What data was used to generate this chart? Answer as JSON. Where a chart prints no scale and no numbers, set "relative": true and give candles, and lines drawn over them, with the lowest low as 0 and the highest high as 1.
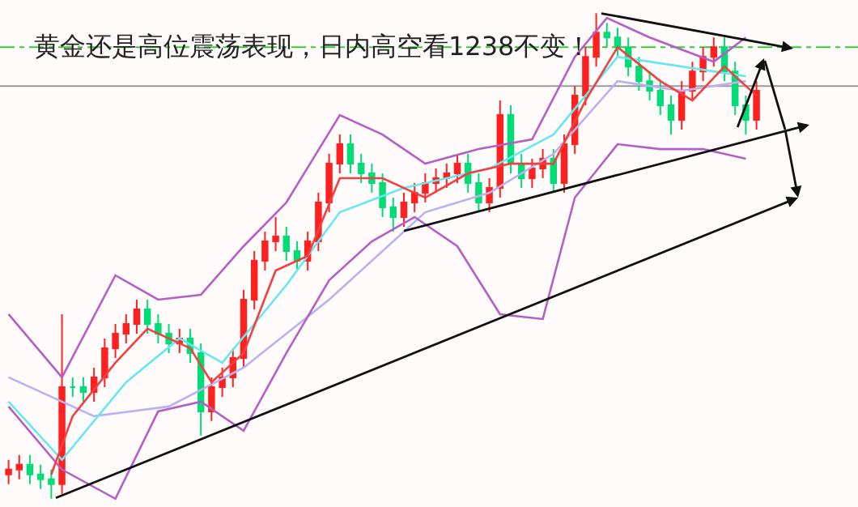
{
  "chart_data": {
    "type": "candlestick",
    "relative": true,
    "title": "黄金还是高位震荡表现，日内高空看1238不变！",
    "categories": [
      null,
      null,
      null,
      null,
      null,
      null,
      null,
      null,
      null,
      null,
      null,
      null,
      null,
      null,
      null,
      null,
      null,
      null,
      null,
      null,
      null,
      null,
      null,
      null,
      null,
      null,
      null,
      null,
      null,
      null,
      null,
      null,
      null,
      null,
      null,
      null,
      null,
      null,
      null,
      null,
      null,
      null,
      null,
      null,
      null,
      null,
      null,
      null,
      null,
      null,
      null,
      null,
      null,
      null,
      null,
      null,
      null,
      null,
      null,
      null,
      null,
      null,
      null,
      null,
      null,
      null,
      null,
      null,
      null,
      null,
      null,
      null,
      null,
      null,
      null,
      null,
      null,
      null,
      null,
      null
    ],
    "ref_lines": [
      {
        "axis": "y",
        "value": 0.93,
        "color": "#33cc33",
        "line_style": "dashed"
      },
      {
        "axis": "y",
        "value": 0.85,
        "color": "#999999",
        "line_style": "solid"
      }
    ],
    "series": [
      {
        "type": "line",
        "color": "#b9b2f0",
        "values": [
          0.25,
          null,
          null,
          null,
          null,
          null,
          null,
          null,
          0.17,
          null,
          null,
          null,
          null,
          null,
          null,
          0.19,
          null,
          null,
          null,
          null,
          null,
          null,
          0.27,
          null,
          null,
          null,
          null,
          null,
          null,
          null,
          0.41,
          null,
          null,
          null,
          null,
          null,
          null,
          null,
          null,
          0.59,
          null,
          null,
          null,
          null,
          null,
          0.63,
          null,
          null,
          null,
          null,
          null,
          0.71,
          null,
          null,
          null,
          null,
          null,
          0.86,
          null,
          null,
          null,
          null,
          null,
          0.84,
          null,
          null,
          null,
          null,
          null,
          0.86,
          null,
          null,
          null,
          null,
          null,
          null,
          null,
          null,
          null,
          null
        ]
      },
      {
        "type": "line",
        "color": "#66e8f0",
        "values": [
          0.2,
          null,
          null,
          null,
          null,
          0.08,
          null,
          null,
          null,
          null,
          null,
          0.24,
          null,
          null,
          null,
          null,
          0.33,
          null,
          null,
          null,
          0.28,
          null,
          null,
          null,
          null,
          null,
          0.44,
          null,
          null,
          null,
          null,
          0.59,
          null,
          null,
          null,
          null,
          null,
          0.64,
          null,
          null,
          null,
          null,
          null,
          null,
          null,
          0.68,
          null,
          null,
          null,
          null,
          null,
          0.75,
          null,
          null,
          null,
          null,
          null,
          0.91,
          null,
          null,
          null,
          null,
          null,
          0.89,
          null,
          null,
          null,
          null,
          null,
          0.87,
          null,
          null,
          null,
          null,
          null,
          null,
          null,
          null,
          null,
          null
        ]
      },
      {
        "type": "line",
        "color": "#b35fc4",
        "values": [
          0.38,
          null,
          null,
          null,
          null,
          0.25,
          null,
          null,
          null,
          null,
          0.46,
          null,
          null,
          null,
          0.41,
          null,
          null,
          null,
          0.42,
          null,
          null,
          null,
          0.52,
          null,
          null,
          null,
          0.61,
          null,
          null,
          null,
          null,
          0.79,
          null,
          null,
          null,
          0.75,
          null,
          null,
          null,
          0.69,
          null,
          null,
          null,
          null,
          0.72,
          null,
          null,
          null,
          null,
          0.74,
          null,
          null,
          null,
          0.91,
          null,
          null,
          0.99,
          null,
          null,
          null,
          0.95,
          null,
          null,
          null,
          null,
          null,
          0.9,
          null,
          null,
          0.95,
          null,
          null,
          null,
          null,
          null,
          null,
          null,
          null,
          null,
          null
        ]
      },
      {
        "type": "line",
        "color": "#b35fc4",
        "values": [
          0.19,
          null,
          null,
          null,
          null,
          0.06,
          null,
          null,
          null,
          null,
          0,
          null,
          null,
          null,
          0.18,
          null,
          null,
          null,
          0.2,
          null,
          null,
          null,
          0.14,
          null,
          null,
          null,
          0.3,
          null,
          null,
          null,
          0.45,
          null,
          null,
          null,
          0.53,
          null,
          null,
          null,
          0.58,
          null,
          null,
          null,
          0.52,
          null,
          null,
          null,
          0.38,
          null,
          null,
          null,
          0.37,
          null,
          null,
          0.62,
          null,
          null,
          null,
          0.73,
          null,
          null,
          null,
          0.72,
          null,
          null,
          null,
          0.72,
          null,
          null,
          null,
          0.7,
          null,
          null,
          null,
          null,
          null,
          null,
          null,
          null,
          null,
          null
        ]
      },
      {
        "type": "line",
        "color": "#f04040",
        "values": [
          null,
          null,
          null,
          null,
          0.05,
          null,
          0.17,
          null,
          null,
          null,
          0.28,
          null,
          null,
          0.35,
          null,
          null,
          null,
          0.31,
          null,
          0.24,
          null,
          null,
          0.3,
          null,
          null,
          0.47,
          null,
          null,
          0.5,
          null,
          null,
          0.66,
          null,
          null,
          null,
          0.66,
          null,
          null,
          null,
          0.62,
          null,
          null,
          null,
          0.67,
          null,
          null,
          null,
          0.69,
          null,
          null,
          null,
          0.69,
          null,
          null,
          0.82,
          null,
          null,
          0.93,
          null,
          null,
          null,
          0.86,
          null,
          null,
          0.82,
          null,
          null,
          0.89,
          null,
          null,
          0.83,
          null,
          null,
          null,
          null,
          null,
          null,
          null,
          null,
          null
        ]
      },
      {
        "colors": [
          "#ff2020",
          "#ff2020",
          "#00dd77",
          "#00dd77",
          "#00dd77",
          "#ff2020",
          "#00dd77",
          "#00dd77",
          "#ff2020",
          "#ff2020",
          "#ff2020",
          "#ff2020",
          "#ff2020",
          "#00dd77",
          "#00dd77",
          "#00dd77",
          "#ff2020",
          "#00dd77",
          "#00dd77",
          "#ff2020",
          "#ff2020",
          "#ff2020",
          "#ff2020",
          "#ff2020",
          "#ff2020",
          "#ff2020",
          "#00dd77",
          "#00dd77",
          "#ff2020",
          "#ff2020",
          "#ff2020",
          "#ff2020",
          "#00dd77",
          "#00dd77",
          "#00dd77",
          "#00dd77",
          "#00dd77",
          "#ff2020",
          "#ff2020",
          "#ff2020",
          "#ff2020",
          "#ff2020",
          "#ff2020",
          "#00dd77",
          "#00dd77",
          "#ff2020",
          "#ff2020",
          "#00dd77",
          "#00dd77",
          "#ff2020",
          "#ff2020",
          "#00dd77",
          "#ff2020",
          "#ff2020",
          "#ff2020",
          "#ff2020",
          "#00dd77",
          "#00dd77",
          "#00dd77",
          "#00dd77",
          "#00dd77",
          "#00dd77",
          "#00dd77",
          "#ff2020",
          "#ff2020",
          "#ff2020",
          "#ff2020",
          "#00dd77",
          "#00dd77",
          "#00dd77",
          "#ff2020",
          null,
          null,
          null,
          null,
          null,
          null,
          null,
          null,
          null
        ],
        "ohlc": [
          [
            0.05,
            0.08,
            0.03,
            0.06
          ],
          [
            0.06,
            0.09,
            0.04,
            0.07
          ],
          [
            0.07,
            0.09,
            0.03,
            0.05
          ],
          [
            0.05,
            0.07,
            0.02,
            0.04
          ],
          [
            0.04,
            0.06,
            0,
            0.03
          ],
          [
            0.03,
            0.38,
            0.01,
            0.23
          ],
          [
            0.23,
            0.25,
            0.21,
            0.23
          ],
          [
            0.23,
            0.25,
            0.2,
            0.22
          ],
          [
            0.22,
            0.27,
            0.2,
            0.25
          ],
          [
            0.25,
            0.33,
            0.23,
            0.31
          ],
          [
            0.31,
            0.36,
            0.29,
            0.34
          ],
          [
            0.34,
            0.38,
            0.32,
            0.36
          ],
          [
            0.36,
            0.41,
            0.34,
            0.39
          ],
          [
            0.39,
            0.41,
            0.34,
            0.36
          ],
          [
            0.36,
            0.38,
            0.32,
            0.34
          ],
          [
            0.34,
            0.36,
            0.3,
            0.32
          ],
          [
            0.32,
            0.35,
            0.3,
            0.33
          ],
          [
            0.33,
            0.35,
            0.28,
            0.3
          ],
          [
            0.3,
            0.32,
            0.13,
            0.18
          ],
          [
            0.18,
            0.25,
            0.16,
            0.23
          ],
          [
            0.23,
            0.27,
            0.21,
            0.25
          ],
          [
            0.25,
            0.31,
            0.23,
            0.29
          ],
          [
            0.29,
            0.43,
            0.27,
            0.41
          ],
          [
            0.41,
            0.51,
            0.39,
            0.49
          ],
          [
            0.49,
            0.55,
            0.47,
            0.53
          ],
          [
            0.53,
            0.58,
            0.51,
            0.54
          ],
          [
            0.54,
            0.56,
            0.49,
            0.51
          ],
          [
            0.51,
            0.53,
            0.47,
            0.49
          ],
          [
            0.49,
            0.55,
            0.47,
            0.53
          ],
          [
            0.53,
            0.63,
            0.51,
            0.61
          ],
          [
            0.61,
            0.71,
            0.59,
            0.69
          ],
          [
            0.69,
            0.75,
            0.67,
            0.73
          ],
          [
            0.73,
            0.75,
            0.67,
            0.69
          ],
          [
            0.69,
            0.71,
            0.65,
            0.67
          ],
          [
            0.67,
            0.69,
            0.63,
            0.65
          ],
          [
            0.65,
            0.67,
            0.58,
            0.6
          ],
          [
            0.6,
            0.62,
            0.55,
            0.58
          ],
          [
            0.58,
            0.63,
            0.56,
            0.61
          ],
          [
            0.61,
            0.65,
            0.59,
            0.63
          ],
          [
            0.63,
            0.67,
            0.61,
            0.65
          ],
          [
            0.65,
            0.68,
            0.63,
            0.66
          ],
          [
            0.66,
            0.69,
            0.64,
            0.67
          ],
          [
            0.67,
            0.71,
            0.65,
            0.69
          ],
          [
            0.69,
            0.71,
            0.63,
            0.65
          ],
          [
            0.65,
            0.67,
            0.59,
            0.61
          ],
          [
            0.61,
            0.66,
            0.59,
            0.64
          ],
          [
            0.64,
            0.82,
            0.62,
            0.79
          ],
          [
            0.79,
            0.81,
            0.67,
            0.69
          ],
          [
            0.69,
            0.71,
            0.64,
            0.66
          ],
          [
            0.66,
            0.7,
            0.64,
            0.68
          ],
          [
            0.68,
            0.72,
            0.66,
            0.7
          ],
          [
            0.7,
            0.72,
            0.63,
            0.65
          ],
          [
            0.65,
            0.75,
            0.63,
            0.73
          ],
          [
            0.73,
            0.85,
            0.71,
            0.83
          ],
          [
            0.83,
            0.93,
            0.81,
            0.91
          ],
          [
            0.91,
            1.0,
            0.89,
            0.96
          ],
          [
            0.96,
            0.98,
            0.93,
            0.95
          ],
          [
            0.95,
            0.97,
            0.91,
            0.93
          ],
          [
            0.93,
            0.95,
            0.87,
            0.89
          ],
          [
            0.89,
            0.91,
            0.84,
            0.86
          ],
          [
            0.86,
            0.88,
            0.82,
            0.84
          ],
          [
            0.84,
            0.86,
            0.79,
            0.81
          ],
          [
            0.81,
            0.83,
            0.75,
            0.78
          ],
          [
            0.78,
            0.86,
            0.76,
            0.84
          ],
          [
            0.84,
            0.9,
            0.82,
            0.88
          ],
          [
            0.88,
            0.93,
            0.86,
            0.91
          ],
          [
            0.91,
            0.95,
            0.89,
            0.93
          ],
          [
            0.93,
            0.95,
            0.86,
            0.88
          ],
          [
            0.88,
            0.9,
            0.79,
            0.81
          ],
          [
            0.81,
            0.83,
            0.75,
            0.78
          ],
          [
            0.78,
            0.86,
            0.76,
            0.84
          ],
          null,
          null,
          null,
          null,
          null,
          null,
          null,
          null,
          null
        ]
      }
    ]
  }
}
